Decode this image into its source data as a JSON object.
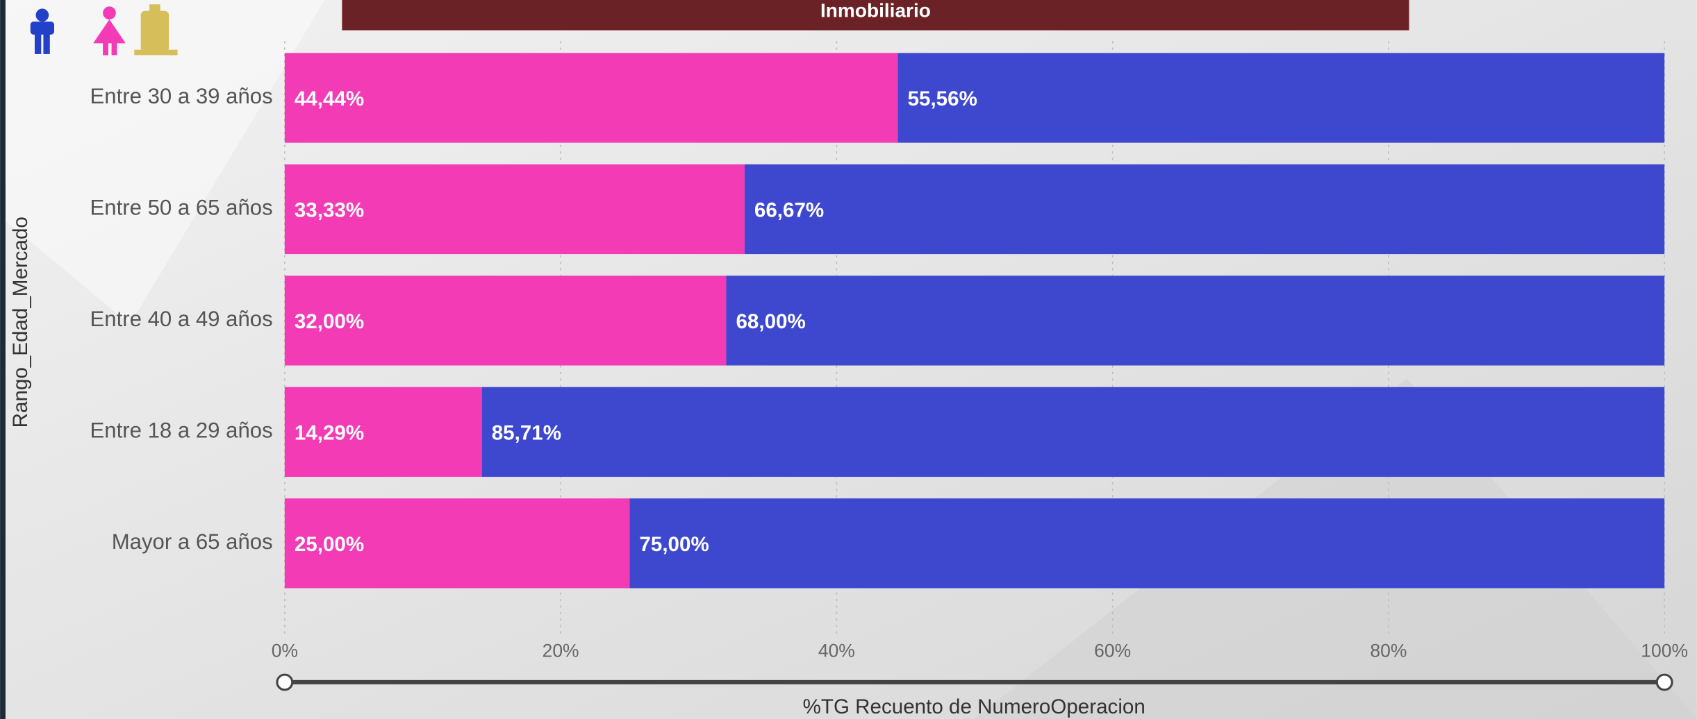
{
  "chart_data": {
    "type": "stacked_bar_horizontal",
    "title": "Inmobiliario",
    "x_label": "%TG Recuento de NumeroOperacion",
    "y_label": "Rango_Edad_Mercado",
    "categories": [
      "Entre 30 a 39 años",
      "Entre 50 a 65 años",
      "Entre 40 a 49 años",
      "Entre 18 a 29 años",
      "Mayor a 65 años"
    ],
    "series": [
      {
        "color": "#f23bb5",
        "values": [
          44.44,
          33.33,
          32.0,
          14.29,
          25.0
        ],
        "value_labels": [
          "44,44%",
          "33,33%",
          "32,00%",
          "14,29%",
          "25,00%"
        ]
      },
      {
        "color": "#3d48cf",
        "values": [
          55.56,
          66.67,
          68.0,
          85.71,
          75.0
        ],
        "value_labels": [
          "55,56%",
          "66,67%",
          "68,00%",
          "85,71%",
          "75,00%"
        ]
      }
    ],
    "xlim": [
      0,
      100
    ],
    "xticks": [
      {
        "value": 0,
        "label": "0%"
      },
      {
        "value": 20,
        "label": "20%"
      },
      {
        "value": 40,
        "label": "40%"
      },
      {
        "value": 60,
        "label": "60%"
      },
      {
        "value": 80,
        "label": "80%"
      },
      {
        "value": 100,
        "label": "100%"
      }
    ],
    "grid": true
  }
}
